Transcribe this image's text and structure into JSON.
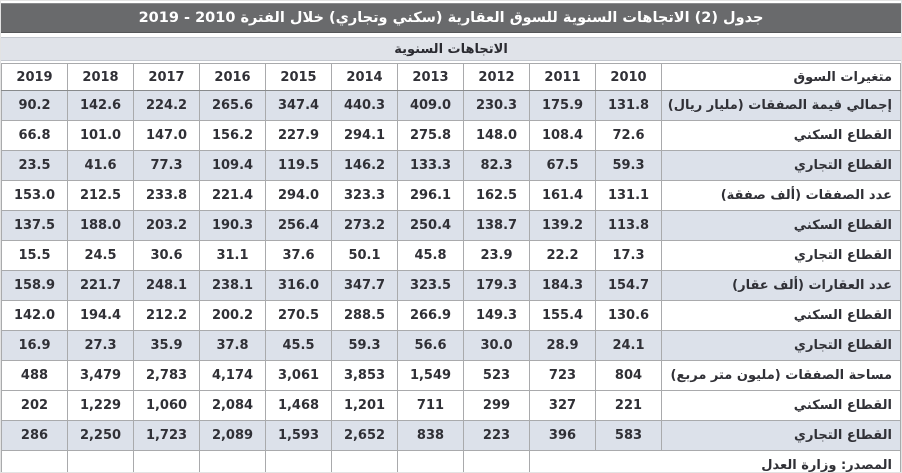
{
  "title": "جدول (2) الاتجاهات السنوية للسوق العقارية (سكني وتجاري) خلال الفترة 2010 - 2019",
  "subheader": "الاتجاهات السنوية",
  "table": {
    "label_header": "متغيرات السوق",
    "years": [
      "2019",
      "2018",
      "2017",
      "2016",
      "2015",
      "2014",
      "2013",
      "2012",
      "2011",
      "2010"
    ],
    "rows": [
      {
        "label": "إجمالي قيمة الصفقات (مليار ريال)",
        "shaded": true,
        "values": [
          "90.2",
          "142.6",
          "224.2",
          "265.6",
          "347.4",
          "440.3",
          "409.0",
          "230.3",
          "175.9",
          "131.8"
        ]
      },
      {
        "label": "القطاع السكني",
        "shaded": false,
        "values": [
          "66.8",
          "101.0",
          "147.0",
          "156.2",
          "227.9",
          "294.1",
          "275.8",
          "148.0",
          "108.4",
          "72.6"
        ]
      },
      {
        "label": "القطاع التجاري",
        "shaded": true,
        "values": [
          "23.5",
          "41.6",
          "77.3",
          "109.4",
          "119.5",
          "146.2",
          "133.3",
          "82.3",
          "67.5",
          "59.3"
        ]
      },
      {
        "label": "عدد الصفقات (ألف صفقة)",
        "shaded": false,
        "values": [
          "153.0",
          "212.5",
          "233.8",
          "221.4",
          "294.0",
          "323.3",
          "296.1",
          "162.5",
          "161.4",
          "131.1"
        ]
      },
      {
        "label": "القطاع السكني",
        "shaded": true,
        "values": [
          "137.5",
          "188.0",
          "203.2",
          "190.3",
          "256.4",
          "273.2",
          "250.4",
          "138.7",
          "139.2",
          "113.8"
        ]
      },
      {
        "label": "القطاع التجاري",
        "shaded": false,
        "values": [
          "15.5",
          "24.5",
          "30.6",
          "31.1",
          "37.6",
          "50.1",
          "45.8",
          "23.9",
          "22.2",
          "17.3"
        ]
      },
      {
        "label": "عدد العقارات (ألف عقار)",
        "shaded": true,
        "values": [
          "158.9",
          "221.7",
          "248.1",
          "238.1",
          "316.0",
          "347.7",
          "323.5",
          "179.3",
          "184.3",
          "154.7"
        ]
      },
      {
        "label": "القطاع السكني",
        "shaded": false,
        "values": [
          "142.0",
          "194.4",
          "212.2",
          "200.2",
          "270.5",
          "288.5",
          "266.9",
          "149.3",
          "155.4",
          "130.6"
        ]
      },
      {
        "label": "القطاع التجاري",
        "shaded": true,
        "values": [
          "16.9",
          "27.3",
          "35.9",
          "37.8",
          "45.5",
          "59.3",
          "56.6",
          "30.0",
          "28.9",
          "24.1"
        ]
      },
      {
        "label": "مساحة الصفقات (مليون متر مربع)",
        "shaded": false,
        "values": [
          "488",
          "3,479",
          "2,783",
          "4,174",
          "3,061",
          "3,853",
          "1,549",
          "523",
          "723",
          "804"
        ]
      },
      {
        "label": "القطاع السكني",
        "shaded": false,
        "values": [
          "202",
          "1,229",
          "1,060",
          "2,084",
          "1,468",
          "1,201",
          "711",
          "299",
          "327",
          "221"
        ]
      },
      {
        "label": "القطاع التجاري",
        "shaded": true,
        "values": [
          "286",
          "2,250",
          "1,723",
          "2,089",
          "1,593",
          "2,652",
          "838",
          "223",
          "396",
          "583"
        ]
      }
    ],
    "source": "المصدر: وزارة العدل"
  },
  "colors": {
    "title_bar_bg": "#696a6c",
    "title_text": "#ffffff",
    "subheader_bg": "#e0e3e9",
    "shaded_row_bg": "#dce1ea",
    "cell_border": "#a9aaac",
    "text": "#303036"
  }
}
